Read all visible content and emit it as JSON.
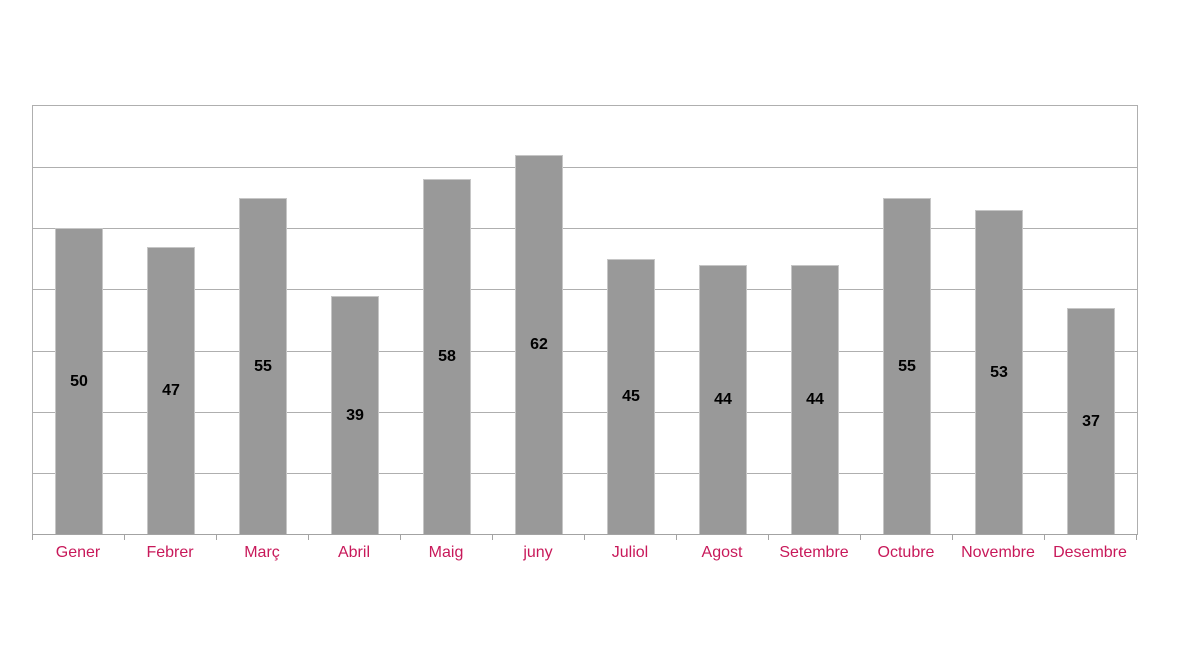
{
  "chart_data": {
    "type": "bar",
    "title": "",
    "xlabel": "",
    "ylabel": "",
    "categories": [
      "Gener",
      "Febrer",
      "Març",
      "Abril",
      "Maig",
      "juny",
      "Juliol",
      "Agost",
      "Setembre",
      "Octubre",
      "Novembre",
      "Desembre"
    ],
    "values": [
      50,
      47,
      55,
      39,
      58,
      62,
      45,
      44,
      44,
      55,
      53,
      37
    ],
    "ylim": [
      0,
      70
    ],
    "grid_step": 10,
    "grid": true,
    "legend": false,
    "y_tick_labels_visible": false,
    "value_labels_position": "bar-center",
    "colors": {
      "bar_fill": "#999999",
      "bar_edge": "#c6c6c6",
      "value_label": "#000000",
      "category_label": "#C8195A",
      "gridline": "#afafaf",
      "axis_line": "#a3a3a3",
      "background": "#ffffff"
    }
  }
}
